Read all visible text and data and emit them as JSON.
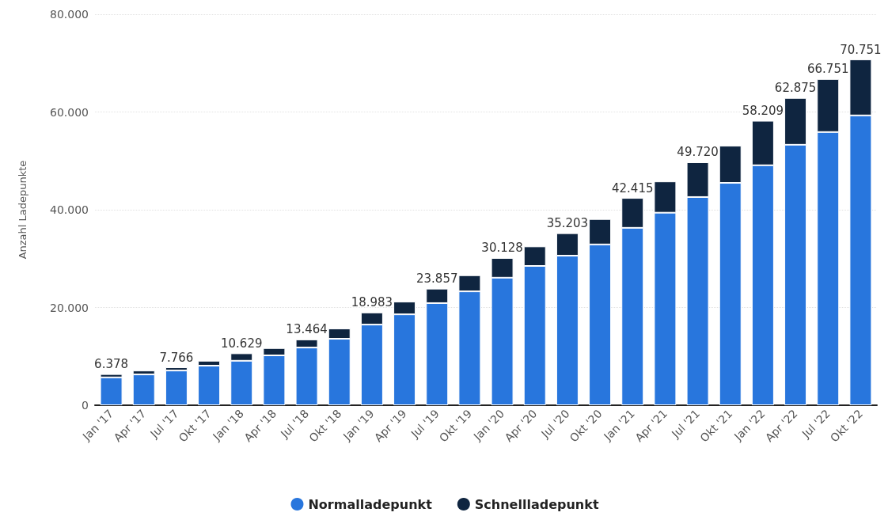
{
  "chart_data": {
    "type": "bar",
    "stacked": true,
    "ylabel": "Anzahl Ladepunkte",
    "categories": [
      "Jan '17",
      "Apr '17",
      "Jul '17",
      "Okt '17",
      "Jan '18",
      "Apr '18",
      "Jul '18",
      "Okt '18",
      "Jan '19",
      "Apr '19",
      "Jul '19",
      "Okt '19",
      "Jan '20",
      "Apr '20",
      "Jul '20",
      "Okt '20",
      "Jan '21",
      "Apr '21",
      "Jul '21",
      "Okt '21",
      "Jan '22",
      "Apr '22",
      "Jul '22",
      "Okt '22"
    ],
    "series": [
      {
        "name": "Normalladepunkt",
        "color": "#2876dd",
        "values": [
          5700,
          6300,
          7100,
          8100,
          9100,
          10200,
          11800,
          13600,
          16500,
          18600,
          20900,
          23300,
          26100,
          28500,
          30600,
          32900,
          36300,
          39400,
          42600,
          45500,
          49100,
          53300,
          55900,
          59300
        ]
      },
      {
        "name": "Schnellladepunkt",
        "color": "#0f2540",
        "values": [
          678,
          800,
          666,
          1000,
          1529,
          1500,
          1664,
          2100,
          2483,
          2600,
          2957,
          3300,
          4028,
          4000,
          4603,
          5200,
          6115,
          6400,
          7120,
          7600,
          9109,
          9575,
          10851,
          11451
        ]
      }
    ],
    "totals": [
      "6.378",
      null,
      "7.766",
      null,
      "10.629",
      null,
      "13.464",
      null,
      "18.983",
      null,
      "23.857",
      null,
      "30.128",
      null,
      "35.203",
      null,
      "42.415",
      null,
      "49.720",
      null,
      "58.209",
      "62.875",
      "66.751",
      "70.751"
    ],
    "ylim": [
      0,
      80000
    ],
    "yticks": [
      {
        "value": 0,
        "label": "0"
      },
      {
        "value": 20000,
        "label": "20.000"
      },
      {
        "value": 40000,
        "label": "40.000"
      },
      {
        "value": 60000,
        "label": "60.000"
      },
      {
        "value": 80000,
        "label": "80.000"
      }
    ],
    "grid": "y",
    "legend": "bottom"
  }
}
